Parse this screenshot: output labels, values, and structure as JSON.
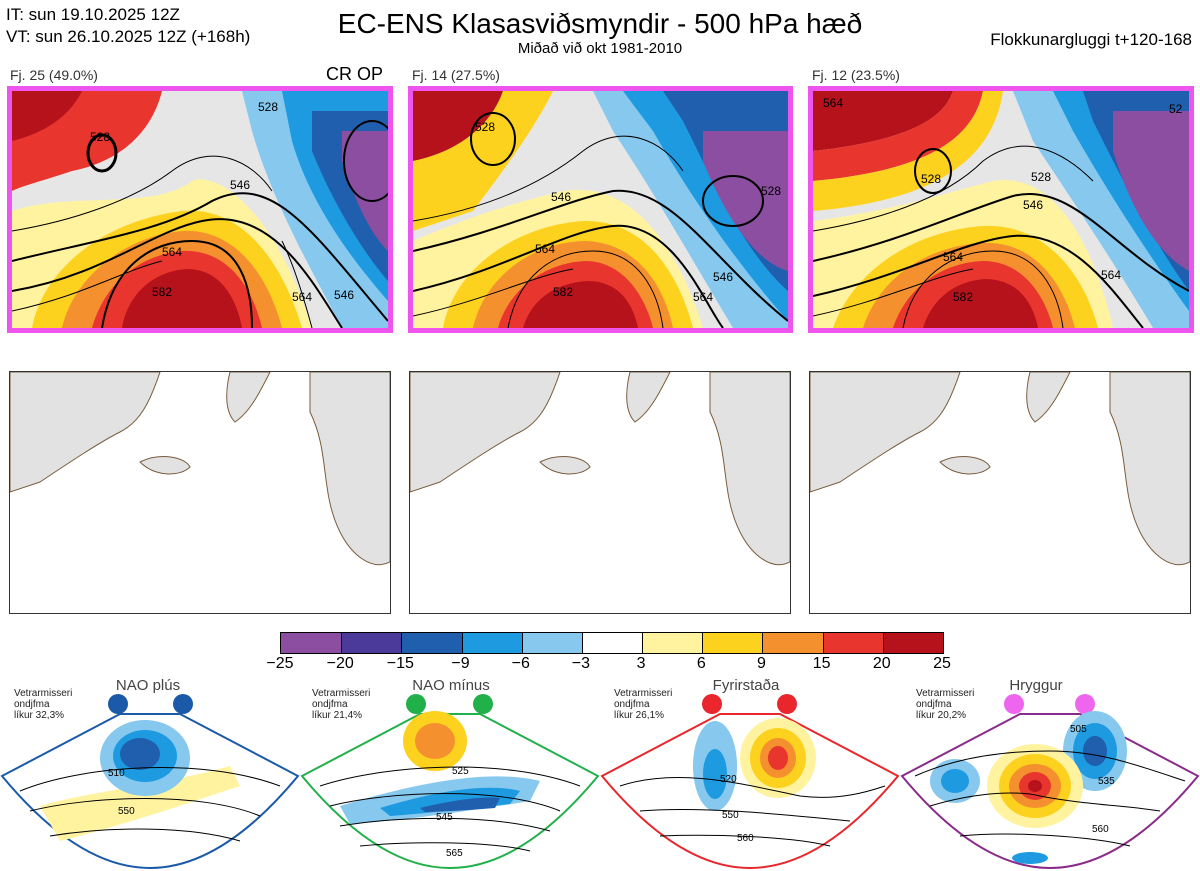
{
  "header": {
    "it_line": "IT: sun 19.10.2025 12Z",
    "vt_line": "VT: sun 26.10.2025 12Z  (+168h)",
    "title": "EC-ENS Klasasviðsmyndir - 500 hPa hæð",
    "subtitle": "Miðað við okt 1981-2010",
    "right_label": "Flokkunargluggi t+120-168"
  },
  "panels": [
    {
      "label": "Fj. 25 (49.0%)",
      "extra": "CR OP",
      "contours": [
        "528",
        "546",
        "564",
        "582",
        "564",
        "546",
        "528"
      ]
    },
    {
      "label": "Fj. 14 (27.5%)",
      "extra": "",
      "contours": [
        "528",
        "546",
        "564",
        "582",
        "546",
        "564",
        "528"
      ]
    },
    {
      "label": "Fj. 12 (23.5%)",
      "extra": "",
      "contours": [
        "564",
        "528",
        "546",
        "564",
        "582",
        "564",
        "528",
        "52"
      ]
    }
  ],
  "colorbar": {
    "ticks": [
      "−25",
      "−20",
      "−15",
      "−9",
      "−6",
      "−3",
      "3",
      "6",
      "9",
      "15",
      "20",
      "25"
    ],
    "colors": [
      "#8b4ea0",
      "#4b3a9a",
      "#1f5fae",
      "#1e9ae0",
      "#86c8ee",
      "#ffffff",
      "#fff3a0",
      "#fdd21f",
      "#f5902f",
      "#e8352d",
      "#b5121b"
    ]
  },
  "regimes": [
    {
      "name": "NAO plús",
      "note_line1": "Vetrarmisseri",
      "note_line2": "ondjfma",
      "note_line3": "líkur 32,3%",
      "color": "#1a5aa8",
      "border": "#1a5aa8",
      "contours": [
        "510",
        "550"
      ]
    },
    {
      "name": "NAO mínus",
      "note_line1": "Vetrarmisseri",
      "note_line2": "ondjfma",
      "note_line3": "líkur 21,4%",
      "color": "#22b04a",
      "border": "#22b04a",
      "contours": [
        "525",
        "545",
        "565"
      ]
    },
    {
      "name": "Fyrirstaða",
      "note_line1": "Vetrarmisseri",
      "note_line2": "ondjfma",
      "note_line3": "líkur 26,1%",
      "color": "#e8262c",
      "border": "#e8262c",
      "contours": [
        "520",
        "550",
        "560"
      ]
    },
    {
      "name": "Hryggur",
      "note_line1": "Vetrarmisseri",
      "note_line2": "ondjfma",
      "note_line3": "líkur 20,2%",
      "color": "#ee66ee",
      "border": "#8a2a8a",
      "contours": [
        "505",
        "535",
        "560"
      ]
    }
  ],
  "chart_data": [
    {
      "type": "heatmap",
      "title": "Fj. 25 (49.0%)",
      "variable": "500 hPa height anomaly",
      "contour_labels": [
        528,
        546,
        564,
        582
      ]
    },
    {
      "type": "heatmap",
      "title": "Fj. 14 (27.5%)",
      "variable": "500 hPa height anomaly",
      "contour_labels": [
        528,
        546,
        564,
        582
      ]
    },
    {
      "type": "heatmap",
      "title": "Fj. 12 (23.5%)",
      "variable": "500 hPa height anomaly",
      "contour_labels": [
        528,
        546,
        564,
        582
      ]
    }
  ]
}
